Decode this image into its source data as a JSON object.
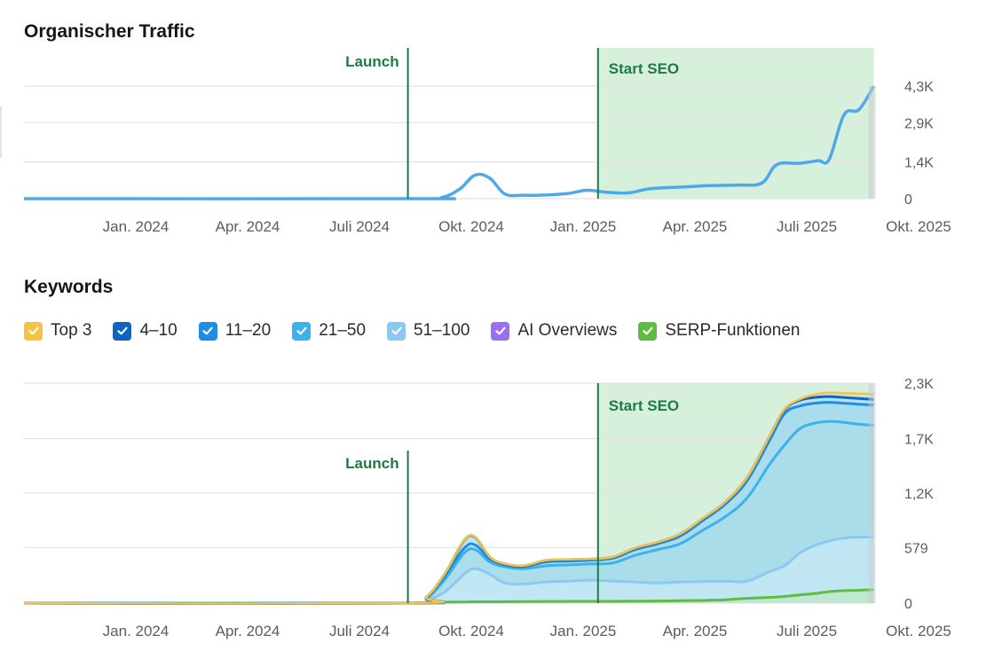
{
  "chart_data": [
    {
      "type": "line",
      "title": "Organischer Traffic",
      "x_ticks": [
        "Jan. 2024",
        "Apr. 2024",
        "Juli 2024",
        "Okt. 2024",
        "Jan. 2025",
        "Apr. 2025",
        "Juli 2025",
        "Okt. 2025"
      ],
      "y_ticks": [
        "0",
        "1,4K",
        "2,9K",
        "4,3K"
      ],
      "y_tick_values": [
        0,
        1400,
        2900,
        4300
      ],
      "ylim": [
        0,
        4300
      ],
      "x_unit": "months since Oct. 2023",
      "grid": true,
      "annotations": [
        {
          "label": "Launch",
          "x": 10.3
        },
        {
          "label": "Start SEO",
          "x": 15.4,
          "shaded_until": 22.8
        }
      ],
      "series": [
        {
          "name": "Organischer Traffic",
          "color": "#4da9e8",
          "x": [
            0,
            10.5,
            11.2,
            11.7,
            12.1,
            12.5,
            12.9,
            13.4,
            14.0,
            14.6,
            15.1,
            15.6,
            16.2,
            16.8,
            17.6,
            18.4,
            19.2,
            19.8,
            20.2,
            20.8,
            21.3,
            21.6,
            22.0,
            22.4,
            22.8
          ],
          "values": [
            0,
            0,
            40,
            380,
            900,
            780,
            180,
            130,
            140,
            200,
            320,
            250,
            220,
            380,
            440,
            500,
            520,
            600,
            1300,
            1350,
            1450,
            1500,
            3200,
            3400,
            4300
          ]
        }
      ]
    },
    {
      "type": "area",
      "title": "Keywords",
      "x_ticks": [
        "Jan. 2024",
        "Apr. 2024",
        "Juli 2024",
        "Okt. 2024",
        "Jan. 2025",
        "Apr. 2025",
        "Juli 2025",
        "Okt. 2025"
      ],
      "y_ticks": [
        "0",
        "579",
        "1,2K",
        "1,7K",
        "2,3K"
      ],
      "y_tick_values": [
        0,
        579,
        1150,
        1720,
        2300
      ],
      "ylim": [
        0,
        2300
      ],
      "x_unit": "months since Oct. 2023",
      "grid": true,
      "legend_position": "top-left",
      "annotations": [
        {
          "label": "Launch",
          "x": 10.3
        },
        {
          "label": "Start SEO",
          "x": 15.4,
          "shaded_until": 22.8
        }
      ],
      "x": [
        0,
        10.3,
        10.8,
        11.3,
        11.8,
        12.1,
        12.5,
        12.9,
        13.4,
        14.0,
        14.6,
        15.2,
        15.8,
        16.4,
        17.0,
        17.6,
        18.2,
        18.8,
        19.4,
        20.0,
        20.4,
        20.8,
        21.2,
        21.6,
        22.0,
        22.4,
        22.8
      ],
      "series": [
        {
          "name": "SERP-Funktionen",
          "color": "#5ebd3e",
          "values": [
            0,
            0,
            5,
            10,
            12,
            14,
            14,
            15,
            16,
            17,
            18,
            18,
            19,
            20,
            22,
            25,
            28,
            35,
            50,
            60,
            70,
            85,
            100,
            120,
            130,
            135,
            140
          ]
        },
        {
          "name": "51–100",
          "color": "#8cc9f2",
          "values": [
            0,
            0,
            30,
            120,
            300,
            360,
            300,
            210,
            200,
            220,
            230,
            240,
            230,
            220,
            210,
            220,
            225,
            230,
            230,
            330,
            390,
            520,
            600,
            650,
            680,
            690,
            690
          ]
        },
        {
          "name": "21–50",
          "color": "#3db2ea",
          "values": [
            0,
            0,
            50,
            250,
            520,
            560,
            430,
            380,
            360,
            390,
            400,
            410,
            420,
            500,
            560,
            620,
            760,
            900,
            1100,
            1450,
            1650,
            1820,
            1880,
            1900,
            1890,
            1870,
            1860
          ]
        },
        {
          "name": "11–20",
          "color": "#1f8ce6",
          "values": [
            0,
            0,
            60,
            290,
            570,
            610,
            460,
            400,
            380,
            430,
            440,
            450,
            470,
            560,
            620,
            700,
            860,
            1030,
            1280,
            1700,
            1980,
            2060,
            2090,
            2100,
            2090,
            2080,
            2070
          ]
        },
        {
          "name": "4–10",
          "color": "#0d64c2",
          "values": [
            0,
            0,
            65,
            310,
            650,
            690,
            480,
            410,
            390,
            445,
            455,
            460,
            480,
            575,
            635,
            720,
            880,
            1050,
            1310,
            1740,
            2020,
            2120,
            2150,
            2160,
            2150,
            2140,
            2130
          ]
        },
        {
          "name": "Top 3",
          "color": "#f5c243",
          "values": [
            0,
            0,
            66,
            312,
            652,
            692,
            482,
            412,
            392,
            447,
            457,
            462,
            482,
            577,
            637,
            722,
            882,
            1052,
            1312,
            1742,
            2025,
            2130,
            2180,
            2200,
            2195,
            2190,
            2185
          ]
        },
        {
          "name": "AI Overviews",
          "color": "#9b6ff0",
          "values": []
        }
      ]
    }
  ],
  "charts": {
    "traffic_title": "Organischer Traffic",
    "keywords_title": "Keywords",
    "launch_label": "Launch",
    "start_seo_label": "Start SEO"
  },
  "legend": [
    {
      "label": "Top 3",
      "color": "#f5c243",
      "checked": true
    },
    {
      "label": "4–10",
      "color": "#0d64c2",
      "checked": true
    },
    {
      "label": "11–20",
      "color": "#1f8ce6",
      "checked": true
    },
    {
      "label": "21–50",
      "color": "#3db2ea",
      "checked": true
    },
    {
      "label": "51–100",
      "color": "#8cc9f2",
      "checked": true
    },
    {
      "label": "AI Overviews",
      "color": "#9b6ff0",
      "checked": true
    },
    {
      "label": "SERP-Funktionen",
      "color": "#5ebd3e",
      "checked": true
    }
  ],
  "colors": {
    "annotation": "#1f7a45",
    "seo_band": "#d6f0dc",
    "grid": "#e3e3e8",
    "axis_text": "#5b5b66"
  }
}
